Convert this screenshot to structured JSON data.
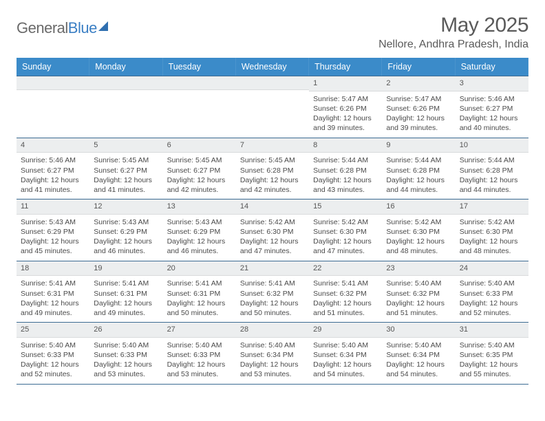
{
  "logo": {
    "word1": "General",
    "word2": "Blue"
  },
  "title": "May 2025",
  "location": "Nellore, Andhra Pradesh, India",
  "colors": {
    "header_bg": "#3b8bc9",
    "header_text": "#ffffff",
    "border": "#3b6a92",
    "daynum_bg": "#eceeef",
    "text": "#4a4a4a",
    "logo_gray": "#6a6a6a",
    "logo_blue": "#3b7fc4"
  },
  "day_names": [
    "Sunday",
    "Monday",
    "Tuesday",
    "Wednesday",
    "Thursday",
    "Friday",
    "Saturday"
  ],
  "weeks": [
    [
      {
        "n": "",
        "sr": "",
        "ss": "",
        "dl": ""
      },
      {
        "n": "",
        "sr": "",
        "ss": "",
        "dl": ""
      },
      {
        "n": "",
        "sr": "",
        "ss": "",
        "dl": ""
      },
      {
        "n": "",
        "sr": "",
        "ss": "",
        "dl": ""
      },
      {
        "n": "1",
        "sr": "Sunrise: 5:47 AM",
        "ss": "Sunset: 6:26 PM",
        "dl": "Daylight: 12 hours and 39 minutes."
      },
      {
        "n": "2",
        "sr": "Sunrise: 5:47 AM",
        "ss": "Sunset: 6:26 PM",
        "dl": "Daylight: 12 hours and 39 minutes."
      },
      {
        "n": "3",
        "sr": "Sunrise: 5:46 AM",
        "ss": "Sunset: 6:27 PM",
        "dl": "Daylight: 12 hours and 40 minutes."
      }
    ],
    [
      {
        "n": "4",
        "sr": "Sunrise: 5:46 AM",
        "ss": "Sunset: 6:27 PM",
        "dl": "Daylight: 12 hours and 41 minutes."
      },
      {
        "n": "5",
        "sr": "Sunrise: 5:45 AM",
        "ss": "Sunset: 6:27 PM",
        "dl": "Daylight: 12 hours and 41 minutes."
      },
      {
        "n": "6",
        "sr": "Sunrise: 5:45 AM",
        "ss": "Sunset: 6:27 PM",
        "dl": "Daylight: 12 hours and 42 minutes."
      },
      {
        "n": "7",
        "sr": "Sunrise: 5:45 AM",
        "ss": "Sunset: 6:28 PM",
        "dl": "Daylight: 12 hours and 42 minutes."
      },
      {
        "n": "8",
        "sr": "Sunrise: 5:44 AM",
        "ss": "Sunset: 6:28 PM",
        "dl": "Daylight: 12 hours and 43 minutes."
      },
      {
        "n": "9",
        "sr": "Sunrise: 5:44 AM",
        "ss": "Sunset: 6:28 PM",
        "dl": "Daylight: 12 hours and 44 minutes."
      },
      {
        "n": "10",
        "sr": "Sunrise: 5:44 AM",
        "ss": "Sunset: 6:28 PM",
        "dl": "Daylight: 12 hours and 44 minutes."
      }
    ],
    [
      {
        "n": "11",
        "sr": "Sunrise: 5:43 AM",
        "ss": "Sunset: 6:29 PM",
        "dl": "Daylight: 12 hours and 45 minutes."
      },
      {
        "n": "12",
        "sr": "Sunrise: 5:43 AM",
        "ss": "Sunset: 6:29 PM",
        "dl": "Daylight: 12 hours and 46 minutes."
      },
      {
        "n": "13",
        "sr": "Sunrise: 5:43 AM",
        "ss": "Sunset: 6:29 PM",
        "dl": "Daylight: 12 hours and 46 minutes."
      },
      {
        "n": "14",
        "sr": "Sunrise: 5:42 AM",
        "ss": "Sunset: 6:30 PM",
        "dl": "Daylight: 12 hours and 47 minutes."
      },
      {
        "n": "15",
        "sr": "Sunrise: 5:42 AM",
        "ss": "Sunset: 6:30 PM",
        "dl": "Daylight: 12 hours and 47 minutes."
      },
      {
        "n": "16",
        "sr": "Sunrise: 5:42 AM",
        "ss": "Sunset: 6:30 PM",
        "dl": "Daylight: 12 hours and 48 minutes."
      },
      {
        "n": "17",
        "sr": "Sunrise: 5:42 AM",
        "ss": "Sunset: 6:30 PM",
        "dl": "Daylight: 12 hours and 48 minutes."
      }
    ],
    [
      {
        "n": "18",
        "sr": "Sunrise: 5:41 AM",
        "ss": "Sunset: 6:31 PM",
        "dl": "Daylight: 12 hours and 49 minutes."
      },
      {
        "n": "19",
        "sr": "Sunrise: 5:41 AM",
        "ss": "Sunset: 6:31 PM",
        "dl": "Daylight: 12 hours and 49 minutes."
      },
      {
        "n": "20",
        "sr": "Sunrise: 5:41 AM",
        "ss": "Sunset: 6:31 PM",
        "dl": "Daylight: 12 hours and 50 minutes."
      },
      {
        "n": "21",
        "sr": "Sunrise: 5:41 AM",
        "ss": "Sunset: 6:32 PM",
        "dl": "Daylight: 12 hours and 50 minutes."
      },
      {
        "n": "22",
        "sr": "Sunrise: 5:41 AM",
        "ss": "Sunset: 6:32 PM",
        "dl": "Daylight: 12 hours and 51 minutes."
      },
      {
        "n": "23",
        "sr": "Sunrise: 5:40 AM",
        "ss": "Sunset: 6:32 PM",
        "dl": "Daylight: 12 hours and 51 minutes."
      },
      {
        "n": "24",
        "sr": "Sunrise: 5:40 AM",
        "ss": "Sunset: 6:33 PM",
        "dl": "Daylight: 12 hours and 52 minutes."
      }
    ],
    [
      {
        "n": "25",
        "sr": "Sunrise: 5:40 AM",
        "ss": "Sunset: 6:33 PM",
        "dl": "Daylight: 12 hours and 52 minutes."
      },
      {
        "n": "26",
        "sr": "Sunrise: 5:40 AM",
        "ss": "Sunset: 6:33 PM",
        "dl": "Daylight: 12 hours and 53 minutes."
      },
      {
        "n": "27",
        "sr": "Sunrise: 5:40 AM",
        "ss": "Sunset: 6:33 PM",
        "dl": "Daylight: 12 hours and 53 minutes."
      },
      {
        "n": "28",
        "sr": "Sunrise: 5:40 AM",
        "ss": "Sunset: 6:34 PM",
        "dl": "Daylight: 12 hours and 53 minutes."
      },
      {
        "n": "29",
        "sr": "Sunrise: 5:40 AM",
        "ss": "Sunset: 6:34 PM",
        "dl": "Daylight: 12 hours and 54 minutes."
      },
      {
        "n": "30",
        "sr": "Sunrise: 5:40 AM",
        "ss": "Sunset: 6:34 PM",
        "dl": "Daylight: 12 hours and 54 minutes."
      },
      {
        "n": "31",
        "sr": "Sunrise: 5:40 AM",
        "ss": "Sunset: 6:35 PM",
        "dl": "Daylight: 12 hours and 55 minutes."
      }
    ]
  ]
}
